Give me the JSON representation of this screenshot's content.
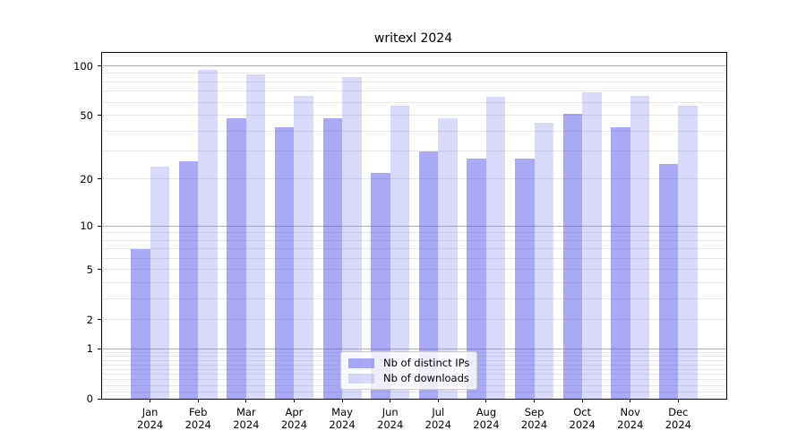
{
  "chart_data": {
    "type": "bar",
    "title": "writexl 2024",
    "categories": [
      "Jan",
      "Feb",
      "Mar",
      "Apr",
      "May",
      "Jun",
      "Jul",
      "Aug",
      "Sep",
      "Oct",
      "Nov",
      "Dec"
    ],
    "x_tick_year": "2024",
    "series": [
      {
        "name": "Nb of distinct IPs",
        "color": "rgba(90,90,238,0.52)",
        "values": [
          7,
          26,
          48,
          42,
          48,
          22,
          30,
          27,
          27,
          51,
          42,
          25
        ]
      },
      {
        "name": "Nb of downloads",
        "color": "rgba(130,130,235,0.30)",
        "values": [
          24,
          95,
          89,
          66,
          85,
          57,
          48,
          65,
          45,
          69,
          66,
          57
        ]
      }
    ],
    "yscale": "log1p",
    "ylim": [
      0,
      120
    ],
    "yticks": [
      100,
      50,
      20,
      10,
      5,
      2,
      1,
      0
    ],
    "major_gridlines": [
      100,
      10,
      1
    ],
    "minor_gridlines": [
      90,
      80,
      70,
      60,
      50,
      40,
      30,
      20,
      9,
      8,
      7,
      6,
      5,
      4,
      3,
      2,
      0.9,
      0.8,
      0.7,
      0.6,
      0.5,
      0.4,
      0.3,
      0.2,
      0.1
    ],
    "grid_color_major": "#b0b0b0",
    "grid_color_minor": "#e7e7e7",
    "legend_position": "lower center",
    "bar_width_fraction": 0.4
  }
}
